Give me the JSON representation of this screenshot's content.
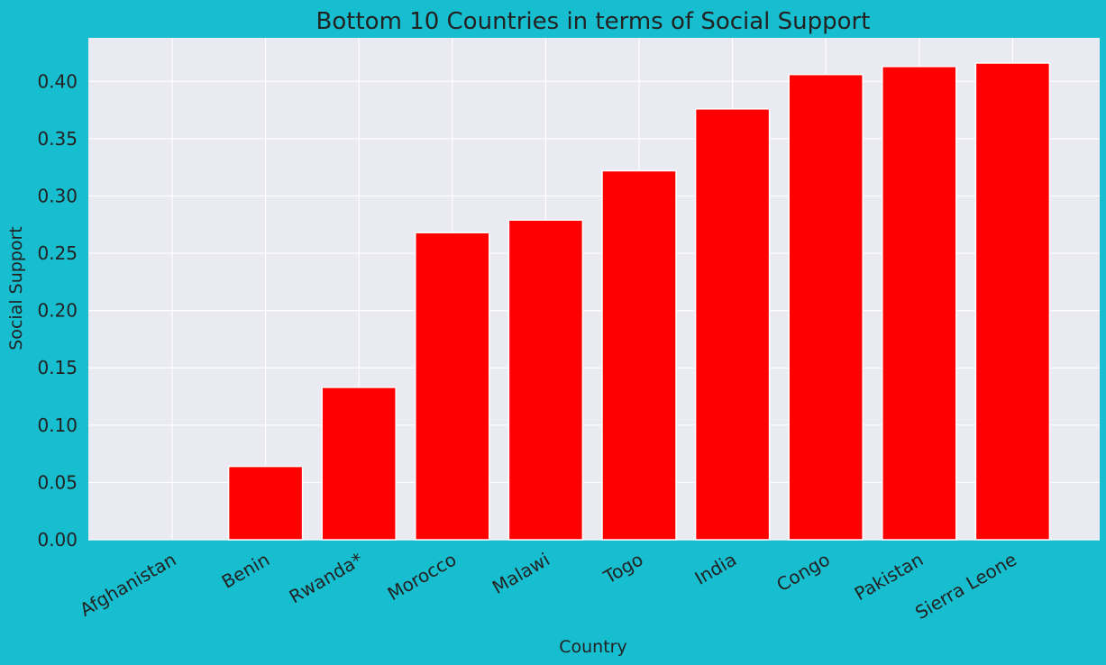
{
  "colors": {
    "figure_background": "#17becf",
    "plot_background": "#eaeaf2",
    "grid": "#ffffff",
    "bar_fill": "#ff0000",
    "bar_edge": "#ffffff",
    "text": "#222222"
  },
  "chart_data": {
    "type": "bar",
    "title": "Bottom 10 Countries in terms of Social Support",
    "xlabel": "Country",
    "ylabel": "Social Support",
    "categories": [
      "Afghanistan",
      "Benin",
      "Rwanda*",
      "Morocco",
      "Malawi",
      "Togo",
      "India",
      "Congo",
      "Pakistan",
      "Sierra Leone"
    ],
    "values": [
      0.0,
      0.064,
      0.133,
      0.268,
      0.279,
      0.322,
      0.376,
      0.406,
      0.413,
      0.416
    ],
    "ylim": [
      0,
      0.438
    ],
    "yticks": [
      0.0,
      0.05,
      0.1,
      0.15,
      0.2,
      0.25,
      0.3,
      0.35,
      0.4
    ],
    "ytick_labels": [
      "0.00",
      "0.05",
      "0.10",
      "0.15",
      "0.20",
      "0.25",
      "0.30",
      "0.35",
      "0.40"
    ],
    "grid": true,
    "legend": "none"
  }
}
